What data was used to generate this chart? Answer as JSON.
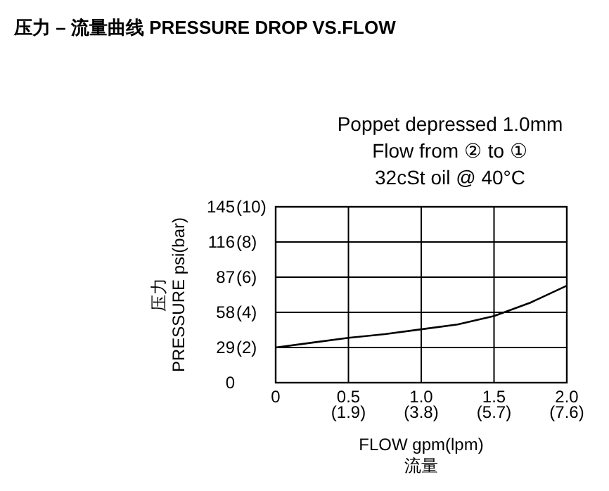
{
  "chart_data": {
    "type": "line",
    "title": "压力 – 流量曲线 PRESSURE DROP VS.FLOW",
    "xlabel": "FLOW gpm(lpm)\n流量",
    "ylabel": "压力\nPRESSURE psi(bar)",
    "annotations": [
      "Poppet depressed 1.0mm",
      "Flow from ② to ①",
      "32cSt  oil @ 40°C"
    ],
    "x": [
      0,
      0.25,
      0.5,
      0.75,
      1.0,
      1.25,
      1.5,
      1.75,
      2.0
    ],
    "series": [
      {
        "color": "#000000",
        "values": [
          29,
          33,
          37,
          40,
          44,
          48,
          55,
          66,
          80
        ]
      }
    ],
    "xlim": [
      0,
      2.0
    ],
    "ylim": [
      0,
      145
    ],
    "xticks": [
      0,
      0.5,
      {
        "value": 1,
        "label": "1.0"
      },
      1.5,
      {
        "value": 2,
        "label": "2.0"
      }
    ],
    "yticks": [
      0,
      29,
      58,
      87,
      116,
      145
    ],
    "x2lim": [
      0,
      7.6
    ],
    "x2ticks": [
      {
        "value": 1.9,
        "label": "(1.9)"
      },
      {
        "value": 3.8,
        "label": "(3.8)"
      },
      {
        "value": 5.7,
        "label": "(5.7)"
      },
      {
        "value": 7.6,
        "label": "(7.6)"
      }
    ],
    "y2lim": [
      0,
      10
    ],
    "y2ticks": [
      {
        "value": 2,
        "label": "(2)"
      },
      {
        "value": 4,
        "label": "(4)"
      },
      {
        "value": 6,
        "label": "(6)"
      },
      {
        "value": 8,
        "label": "(8)"
      },
      {
        "value": 10,
        "label": "(10)"
      }
    ],
    "grid": true,
    "line_style": "solid"
  }
}
